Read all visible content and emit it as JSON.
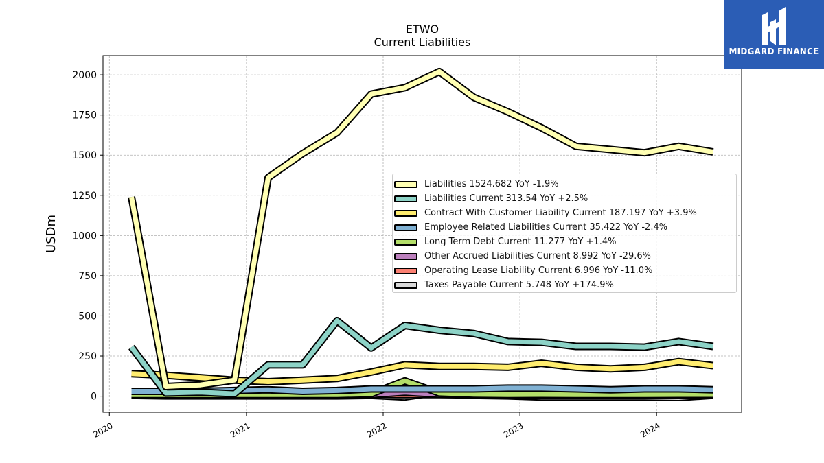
{
  "chart_data": {
    "type": "area",
    "title": "ETWO",
    "subtitle": "Current  Liabilities",
    "ylabel": "USDm",
    "ylim": [
      -100,
      2120
    ],
    "xlim": [
      "2019-12-15",
      "2024-08-15"
    ],
    "yticks": [
      0,
      250,
      500,
      750,
      1000,
      1250,
      1500,
      1750,
      2000
    ],
    "xticks": [
      {
        "label": "2020",
        "date": "2020-01-01"
      },
      {
        "label": "2021",
        "date": "2021-01-01"
      },
      {
        "label": "2022",
        "date": "2022-01-01"
      },
      {
        "label": "2023",
        "date": "2023-01-01"
      },
      {
        "label": "2024",
        "date": "2024-01-01"
      }
    ],
    "grid": true,
    "legend_position": "center-right",
    "x": [
      "2020-02-29",
      "2020-05-31",
      "2020-08-31",
      "2020-11-30",
      "2021-02-28",
      "2021-05-31",
      "2021-08-31",
      "2021-11-30",
      "2022-02-28",
      "2022-05-31",
      "2022-08-31",
      "2022-11-30",
      "2023-02-28",
      "2023-05-31",
      "2023-08-31",
      "2023-11-30",
      "2024-02-29",
      "2024-05-31"
    ],
    "series": [
      {
        "name": "Liabilities",
        "legend": "Liabilities  1524.682 YoY -1.9%",
        "color": "#ffffb3",
        "values": [
          1240,
          60,
          70,
          100,
          1360,
          1510,
          1640,
          1880,
          1920,
          2020,
          1860,
          1770,
          1670,
          1555,
          1535,
          1515,
          1555,
          1520
        ]
      },
      {
        "name": "Liabilities Current",
        "legend": "Liabilities Current  313.54 YoY +2.5%",
        "color": "#8dd3c7",
        "values": [
          305,
          20,
          25,
          15,
          195,
          195,
          470,
          300,
          440,
          410,
          390,
          340,
          335,
          310,
          310,
          305,
          340,
          310
        ]
      },
      {
        "name": "Contract With Customer Liability Current",
        "legend": "Contract With Customer Liability Current  187.197 YoY +3.9%",
        "color": "#ffed6f",
        "values": [
          140,
          130,
          115,
          100,
          90,
          100,
          110,
          150,
          195,
          185,
          185,
          180,
          205,
          180,
          170,
          180,
          215,
          190
        ]
      },
      {
        "name": "Employee Related Liabilities Current",
        "legend": "Employee Related Liabilities Current  35.422 YoY -2.4%",
        "color": "#80b1d3",
        "values": [
          30,
          30,
          30,
          35,
          40,
          30,
          35,
          45,
          45,
          45,
          45,
          50,
          50,
          45,
          40,
          45,
          45,
          40
        ]
      },
      {
        "name": "Long Term Debt Current",
        "legend": "Long Term Debt Current  11.277 YoY +1.4%",
        "color": "#b3de69",
        "values": [
          10,
          10,
          10,
          10,
          10,
          10,
          10,
          15,
          95,
          20,
          12,
          10,
          11,
          10,
          10,
          10,
          11,
          11
        ]
      },
      {
        "name": "Other Accrued Liabilities Current",
        "legend": "Other Accrued Liabilities Current  8.992 YoY -29.6%",
        "color": "#bc80bd",
        "values": [
          8,
          8,
          8,
          8,
          8,
          8,
          8,
          10,
          25,
          12,
          10,
          15,
          13,
          12,
          10,
          9,
          13,
          9
        ]
      },
      {
        "name": "Operating Lease Liability Current",
        "legend": "Operating Lease Liability Current  6.996 YoY -11.0%",
        "color": "#fb8072",
        "values": [
          5,
          5,
          5,
          5,
          5,
          5,
          5,
          10,
          10,
          10,
          8,
          8,
          8,
          7,
          7,
          7,
          8,
          7
        ]
      },
      {
        "name": "Taxes Payable Current",
        "legend": "Taxes Payable Current  5.748 YoY +174.9%",
        "color": "#d9d9d9",
        "values": [
          5,
          2,
          2,
          2,
          2,
          2,
          2,
          5,
          -5,
          25,
          5,
          2,
          -5,
          -5,
          -5,
          -5,
          -8,
          6
        ]
      }
    ]
  },
  "logo": {
    "brand": "MIDGARD FINANCE"
  }
}
